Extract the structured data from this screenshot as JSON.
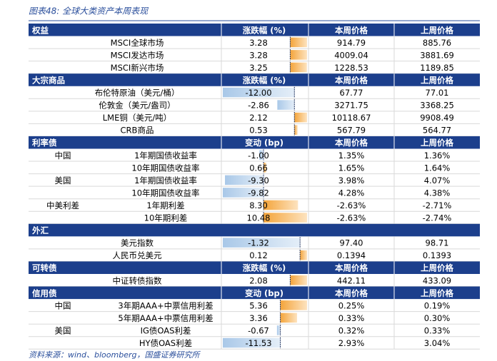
{
  "title": "图表48: 全球大类资产本周表现",
  "source": "资料来源：wind、bloomberg，国盛证券研究所",
  "sections": [
    {
      "name": "权益",
      "headers": [
        "涨跌幅 (%)",
        "本周价格",
        "上周价格"
      ],
      "rows": [
        {
          "item": "MSCI全球市场",
          "change": "3.28",
          "this_week": "914.79",
          "last_week": "885.76"
        },
        {
          "item": "MSCI发达市场",
          "change": "3.28",
          "this_week": "4009.04",
          "last_week": "3881.69"
        },
        {
          "item": "MSCI新兴市场",
          "change": "3.25",
          "this_week": "1228.53",
          "last_week": "1189.85"
        }
      ]
    },
    {
      "name": "大宗商品",
      "headers": [
        "涨跌幅 (%)",
        "本周价格",
        "上周价格"
      ],
      "rows": [
        {
          "item": "布伦特原油（美元/桶）",
          "change": "-12.00",
          "this_week": "67.77",
          "last_week": "77.01"
        },
        {
          "item": "伦敦金（美元/盎司）",
          "change": "-2.86",
          "this_week": "3271.75",
          "last_week": "3368.25"
        },
        {
          "item": "LME铜（美元/吨）",
          "change": "2.12",
          "this_week": "10118.67",
          "last_week": "9908.49"
        },
        {
          "item": "CRB商品",
          "change": "0.53",
          "this_week": "567.79",
          "last_week": "564.77"
        }
      ]
    },
    {
      "name": "利率债",
      "headers": [
        "变动 (bp)",
        "本周价格",
        "上周价格"
      ],
      "rows": [
        {
          "region": "中国",
          "item": "1年期国债收益率",
          "change": "-1.00",
          "this_week": "1.35%",
          "last_week": "1.36%"
        },
        {
          "item": "10年期国债收益率",
          "change": "0.66",
          "this_week": "1.65%",
          "last_week": "1.64%"
        },
        {
          "region": "美国",
          "item": "1年期国债收益率",
          "change": "-9.30",
          "this_week": "3.98%",
          "last_week": "4.07%"
        },
        {
          "item": "10年期国债收益率",
          "change": "-9.82",
          "this_week": "4.28%",
          "last_week": "4.38%"
        },
        {
          "region": "中美利差",
          "item": "1年期利差",
          "change": "8.30",
          "this_week": "-2.63%",
          "last_week": "-2.71%"
        },
        {
          "item": "10年期利差",
          "change": "10.48",
          "this_week": "-2.63%",
          "last_week": "-2.74%"
        }
      ]
    },
    {
      "name": "外汇",
      "rows": [
        {
          "item": "美元指数",
          "change": "-1.32",
          "this_week": "97.40",
          "last_week": "98.71"
        },
        {
          "item": "人民币兑美元",
          "change": "0.12",
          "this_week": "0.1394",
          "last_week": "0.1393"
        }
      ]
    },
    {
      "name": "可转债",
      "headers": [
        "涨跌幅 (%)",
        "本周价格",
        "上周价格"
      ],
      "rows": [
        {
          "item": "中证转债指数",
          "change": "2.08",
          "this_week": "442.11",
          "last_week": "433.09"
        }
      ]
    },
    {
      "name": "信用债",
      "headers": [
        "变动 (bp)",
        "本周价格",
        "上周价格"
      ],
      "rows": [
        {
          "region": "中国",
          "item": "3年期AAA+中票信用利差",
          "change": "5.36",
          "this_week": "0.25%",
          "last_week": "0.19%"
        },
        {
          "item": "5年期AAA+中票信用利差",
          "change": "3.36",
          "this_week": "0.33%",
          "last_week": "0.30%"
        },
        {
          "region": "美国",
          "item": "IG债OAS利差",
          "change": "-0.67",
          "this_week": "0.32%",
          "last_week": "0.33%"
        },
        {
          "item": "HY债OAS利差",
          "change": "-11.53",
          "this_week": "2.93%",
          "last_week": "3.04%"
        }
      ]
    }
  ]
}
